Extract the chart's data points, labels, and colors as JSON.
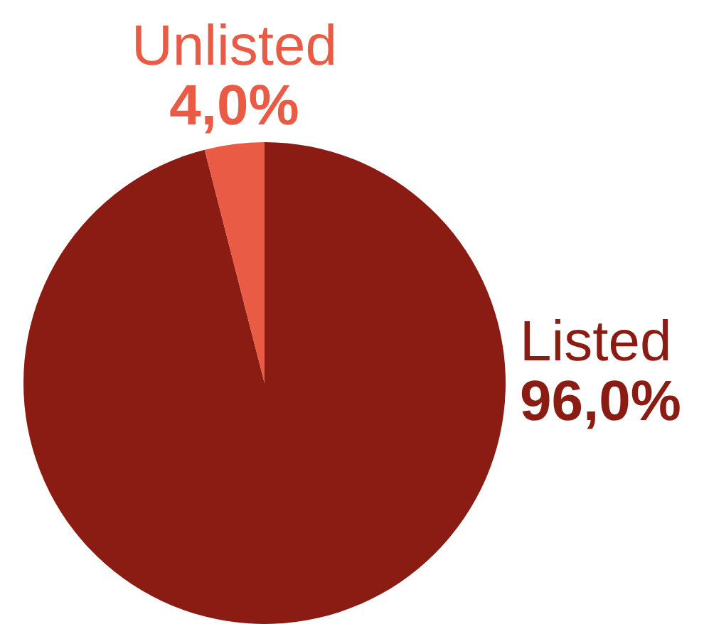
{
  "chart_data": {
    "type": "pie",
    "categories": [
      "Listed",
      "Unlisted"
    ],
    "values": [
      96,
      4
    ],
    "colors": [
      "#8b1c13",
      "#e95b45"
    ],
    "value_labels": [
      "96,0%",
      "4,0%"
    ]
  }
}
